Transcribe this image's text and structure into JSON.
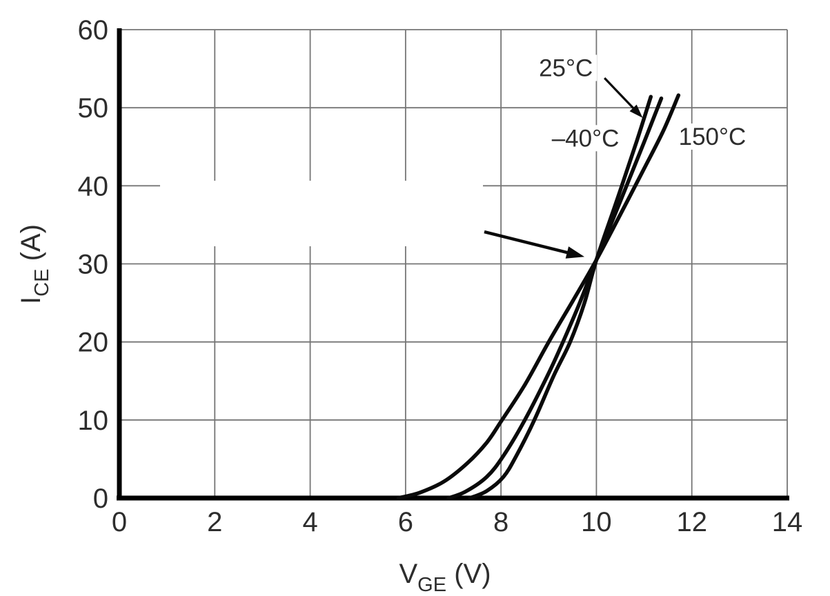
{
  "chart_data": {
    "type": "line",
    "title": "",
    "xlabel": {
      "main": "V",
      "sub": "GE",
      "suffix": " (V)"
    },
    "ylabel": {
      "main": "I",
      "sub": "CE",
      "suffix": " (A)"
    },
    "xlim": [
      0,
      14
    ],
    "ylim": [
      0,
      60
    ],
    "xticks": [
      0,
      2,
      4,
      6,
      8,
      10,
      12,
      14
    ],
    "yticks": [
      0,
      10,
      20,
      30,
      40,
      50,
      60
    ],
    "grid": true,
    "legend_position": "inline-annotations",
    "series": [
      {
        "name": "150°C",
        "points": [
          [
            5.85,
            0
          ],
          [
            6.3,
            0.7
          ],
          [
            6.8,
            2.1
          ],
          [
            7.3,
            4.5
          ],
          [
            7.7,
            7.1
          ],
          [
            8.0,
            9.8
          ],
          [
            8.5,
            14.5
          ],
          [
            9.0,
            20.0
          ],
          [
            9.5,
            25.2
          ],
          [
            10.0,
            30.5
          ],
          [
            10.5,
            36.3
          ],
          [
            11.0,
            42.2
          ],
          [
            11.4,
            47.0
          ],
          [
            11.72,
            51.6
          ]
        ]
      },
      {
        "name": "25°C",
        "points": [
          [
            6.9,
            0
          ],
          [
            7.25,
            0.8
          ],
          [
            7.7,
            2.7
          ],
          [
            8.05,
            5.4
          ],
          [
            8.5,
            10.0
          ],
          [
            9.0,
            16.0
          ],
          [
            9.3,
            20.0
          ],
          [
            9.65,
            25.0
          ],
          [
            10.0,
            30.5
          ],
          [
            10.5,
            38.0
          ],
          [
            11.0,
            45.6
          ],
          [
            11.36,
            51.2
          ]
        ]
      },
      {
        "name": "-40°C",
        "points": [
          [
            7.35,
            0
          ],
          [
            7.7,
            0.9
          ],
          [
            8.05,
            2.7
          ],
          [
            8.32,
            5.4
          ],
          [
            8.7,
            10.0
          ],
          [
            9.1,
            15.6
          ],
          [
            9.45,
            20.0
          ],
          [
            9.75,
            25.0
          ],
          [
            10.0,
            30.5
          ],
          [
            10.45,
            38.5
          ],
          [
            10.85,
            45.8
          ],
          [
            11.14,
            51.4
          ]
        ]
      }
    ],
    "annotations": {
      "labels": [
        {
          "id": "label-25c",
          "text": "25°C",
          "x": 9.36,
          "y": 55.1
        },
        {
          "id": "label-minus40c",
          "text": "–40°C",
          "x": 9.77,
          "y": 46.1
        },
        {
          "id": "label-150c",
          "text": "150°C",
          "x": 12.43,
          "y": 46.3
        }
      ],
      "arrows": [
        {
          "id": "arrow-25c",
          "from": [
            10.17,
            53.8
          ],
          "to": [
            10.97,
            48.7
          ],
          "width": 3.2,
          "head": [
            20,
            7
          ]
        },
        {
          "id": "arrow-crossover",
          "from": [
            7.65,
            34.1
          ],
          "to": [
            9.75,
            30.9
          ],
          "width": 4.5,
          "head": [
            26,
            9
          ]
        }
      ]
    },
    "colors": {
      "curve": "#0a0a0a",
      "grid": "#757575",
      "axis": "#000000",
      "text": "#2d2d2d",
      "background": "#ffffff"
    }
  }
}
